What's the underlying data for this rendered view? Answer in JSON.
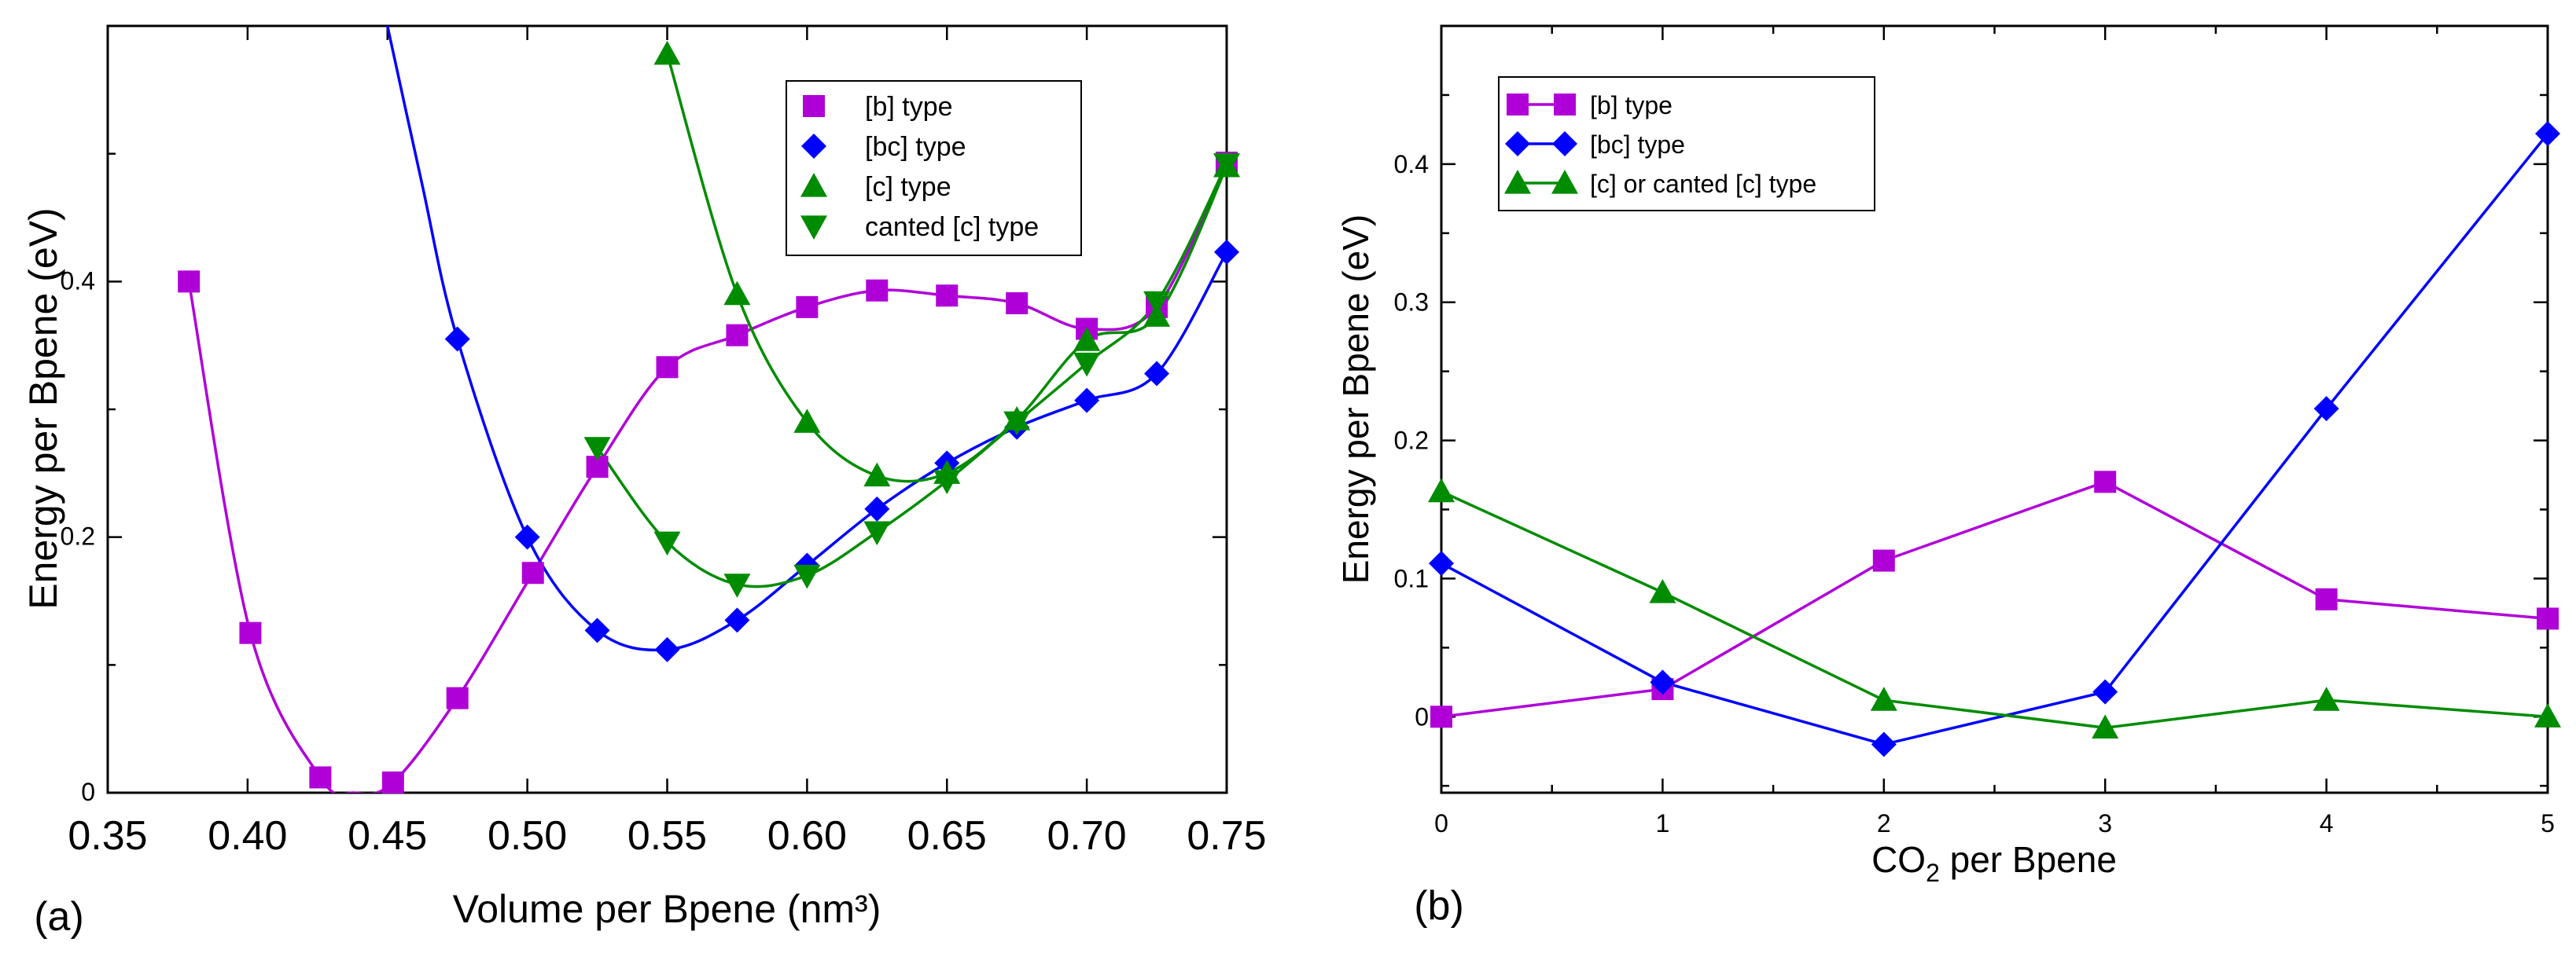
{
  "chart_data": [
    {
      "panel_label": "(a)",
      "type": "scatter",
      "xlabel": "Volume per Bpene (nm³)",
      "ylabel": "Energy per Bpene (eV)",
      "xlim": [
        0.35,
        0.75
      ],
      "ylim": [
        0,
        0.6
      ],
      "xticks": [
        "0.35",
        "0.40",
        "0.45",
        "0.50",
        "0.55",
        "0.60",
        "0.65",
        "0.70",
        "0.75"
      ],
      "yticks": [
        "0",
        "0.2",
        "0.4"
      ],
      "legend_position": "top-right",
      "series": [
        {
          "name": "[b] type",
          "color": "#b000d8",
          "marker": "square",
          "x": [
            0.379,
            0.401,
            0.426,
            0.452,
            0.475,
            0.502,
            0.525,
            0.55,
            0.575,
            0.6,
            0.625,
            0.65,
            0.675,
            0.7,
            0.725,
            0.75
          ],
          "y": [
            0.4,
            0.125,
            0.012,
            0.008,
            0.074,
            0.172,
            0.255,
            0.333,
            0.358,
            0.38,
            0.393,
            0.389,
            0.383,
            0.363,
            0.38,
            0.493
          ]
        },
        {
          "name": "[bc] type",
          "color": "#0000ff",
          "marker": "diamond",
          "x": [
            0.475,
            0.5,
            0.525,
            0.55,
            0.575,
            0.6,
            0.625,
            0.65,
            0.675,
            0.7,
            0.725,
            0.75
          ],
          "y": [
            0.355,
            0.2,
            0.127,
            0.112,
            0.135,
            0.178,
            0.222,
            0.258,
            0.286,
            0.307,
            0.328,
            0.423
          ]
        },
        {
          "name": "[c] type",
          "color": "#008c00",
          "marker": "triangle-up",
          "x": [
            0.55,
            0.575,
            0.6,
            0.625,
            0.65,
            0.675,
            0.7,
            0.725,
            0.75
          ],
          "y": [
            0.578,
            0.39,
            0.29,
            0.248,
            0.25,
            0.292,
            0.354,
            0.373,
            0.49
          ]
        },
        {
          "name": "canted [c] type",
          "color": "#008c00",
          "marker": "triangle-down",
          "x": [
            0.525,
            0.55,
            0.575,
            0.6,
            0.625,
            0.65,
            0.675,
            0.7,
            0.725,
            0.75
          ],
          "y": [
            0.27,
            0.196,
            0.163,
            0.17,
            0.204,
            0.244,
            0.29,
            0.336,
            0.384,
            0.492
          ]
        }
      ]
    },
    {
      "panel_label": "(b)",
      "type": "line",
      "xlabel_main": "CO",
      "xlabel_sub": "2",
      "xlabel_rest": " per Bpene",
      "ylabel": "Energy per Bpene (eV)",
      "xlim": [
        0,
        5
      ],
      "ylim": [
        -0.055,
        0.5
      ],
      "xticks": [
        "0",
        "1",
        "2",
        "3",
        "4",
        "5"
      ],
      "yticks": [
        "0",
        "0.1",
        "0.2",
        "0.3",
        "0.4"
      ],
      "legend_position": "top-left",
      "series": [
        {
          "name": "[b] type",
          "color": "#b000d8",
          "marker": "square",
          "x": [
            0,
            1,
            2,
            3,
            4,
            5
          ],
          "y": [
            0.0,
            0.02,
            0.113,
            0.17,
            0.085,
            0.071
          ]
        },
        {
          "name": "[bc] type",
          "color": "#0000ff",
          "marker": "diamond",
          "x": [
            0,
            1,
            2,
            3,
            4,
            5
          ],
          "y": [
            0.111,
            0.025,
            -0.02,
            0.018,
            0.223,
            0.422
          ]
        },
        {
          "name": "[c] or canted [c] type",
          "color": "#008c00",
          "marker": "triangle-up",
          "x": [
            0,
            1,
            2,
            3,
            4,
            5
          ],
          "y": [
            0.163,
            0.09,
            0.012,
            -0.008,
            0.012,
            0.0
          ]
        }
      ]
    }
  ]
}
